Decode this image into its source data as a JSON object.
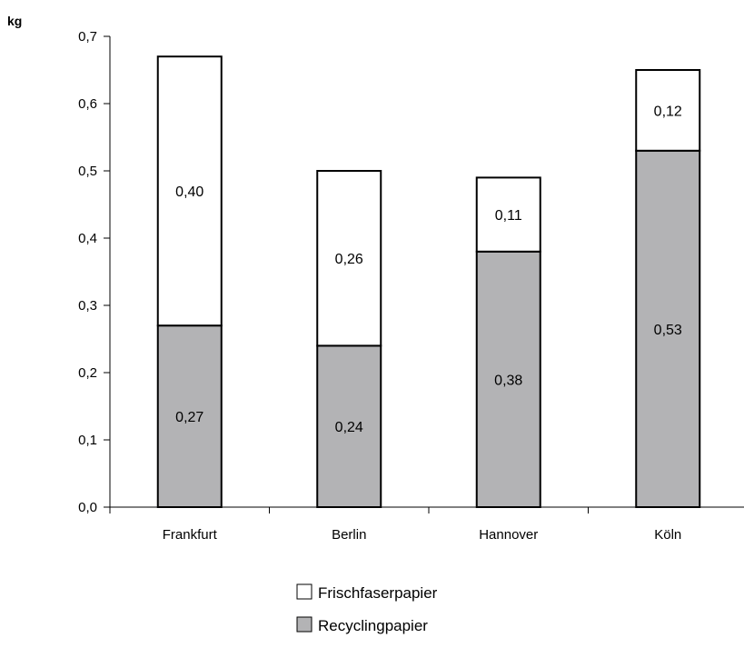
{
  "chart_data": {
    "type": "bar",
    "stacked": true,
    "categories": [
      "Frankfurt",
      "Berlin",
      "Hannover",
      "Köln"
    ],
    "series": [
      {
        "name": "Recyclingpapier",
        "values": [
          0.27,
          0.24,
          0.38,
          0.53
        ],
        "labels": [
          "0,27",
          "0,24",
          "0,38",
          "0,53"
        ],
        "color": "#b3b3b5"
      },
      {
        "name": "Frischfaserpapier",
        "values": [
          0.4,
          0.26,
          0.11,
          0.12
        ],
        "labels": [
          "0,40",
          "0,26",
          "0,11",
          "0,12"
        ],
        "color": "#ffffff"
      }
    ],
    "ylabel": "kg",
    "ylim": [
      0,
      0.7
    ],
    "yticks": [
      0,
      0.1,
      0.2,
      0.3,
      0.4,
      0.5,
      0.6,
      0.7
    ],
    "ytick_labels": [
      "0,0",
      "0,1",
      "0,2",
      "0,3",
      "0,4",
      "0,5",
      "0,6",
      "0,7"
    ],
    "grid": false,
    "legend_position": "bottom-center",
    "legend_order": [
      "Frischfaserpapier",
      "Recyclingpapier"
    ]
  }
}
